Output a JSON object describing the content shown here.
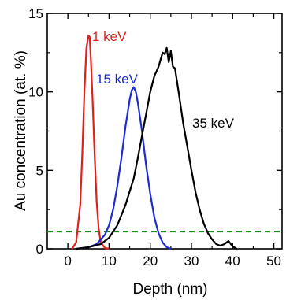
{
  "chart_data": {
    "type": "line",
    "xlabel": "Depth (nm)",
    "ylabel": "Au concentration (at. %)",
    "xlim": [
      -5,
      52
    ],
    "ylim": [
      0,
      15
    ],
    "x_ticks": [
      0,
      10,
      20,
      30,
      40,
      50
    ],
    "y_ticks": [
      0,
      5,
      10,
      15
    ],
    "x_tick_labels": [
      "0",
      "10",
      "20",
      "30",
      "40",
      "50"
    ],
    "y_tick_labels": [
      "0",
      "5",
      "10",
      "15"
    ],
    "grid": false,
    "series": [
      {
        "name": "1 keV",
        "color": "#e0201b",
        "x": [
          1,
          2,
          3,
          3.5,
          4,
          4.5,
          5,
          5.3,
          5.6,
          6,
          6.5,
          7,
          7.5,
          8,
          9,
          10
        ],
        "y": [
          0,
          0.4,
          2.8,
          6.0,
          10.0,
          12.8,
          13.6,
          13.5,
          12.0,
          9.5,
          6.0,
          3.0,
          1.2,
          0.4,
          0.05,
          0
        ]
      },
      {
        "name": "15 keV",
        "color": "#1c2bd1",
        "x": [
          2,
          5,
          7,
          8,
          9,
          10,
          11,
          12,
          13,
          14,
          15,
          15.5,
          16,
          16.5,
          17,
          18,
          19,
          20,
          21,
          22,
          23,
          24,
          25
        ],
        "y": [
          0,
          0.1,
          0.3,
          0.6,
          0.9,
          1.5,
          2.5,
          4.0,
          5.8,
          7.8,
          9.5,
          10.1,
          10.3,
          10.0,
          9.3,
          7.5,
          5.3,
          3.5,
          2.0,
          1.0,
          0.4,
          0.1,
          0
        ]
      },
      {
        "name": "35 keV",
        "color": "#000000",
        "x": [
          2,
          5,
          8,
          10,
          12,
          14,
          16,
          17,
          18,
          19,
          20,
          21,
          22,
          23,
          23.5,
          24,
          24.5,
          25,
          25.5,
          26,
          27,
          28,
          29,
          30,
          31,
          32,
          33,
          34,
          35,
          36,
          37,
          38,
          39,
          40,
          41
        ],
        "y": [
          0,
          0.1,
          0.3,
          0.7,
          1.5,
          2.8,
          4.5,
          5.8,
          7.2,
          8.6,
          10.0,
          11.0,
          11.6,
          12.5,
          12.4,
          12.8,
          11.9,
          12.6,
          11.6,
          11.5,
          9.8,
          8.0,
          6.5,
          5.0,
          3.6,
          2.5,
          1.6,
          1.0,
          0.6,
          0.3,
          0.2,
          0.3,
          0.5,
          0.15,
          0
        ]
      }
    ],
    "reference_line": {
      "y": 1.1,
      "color": "#1f8a1f",
      "style": "dashed"
    }
  }
}
